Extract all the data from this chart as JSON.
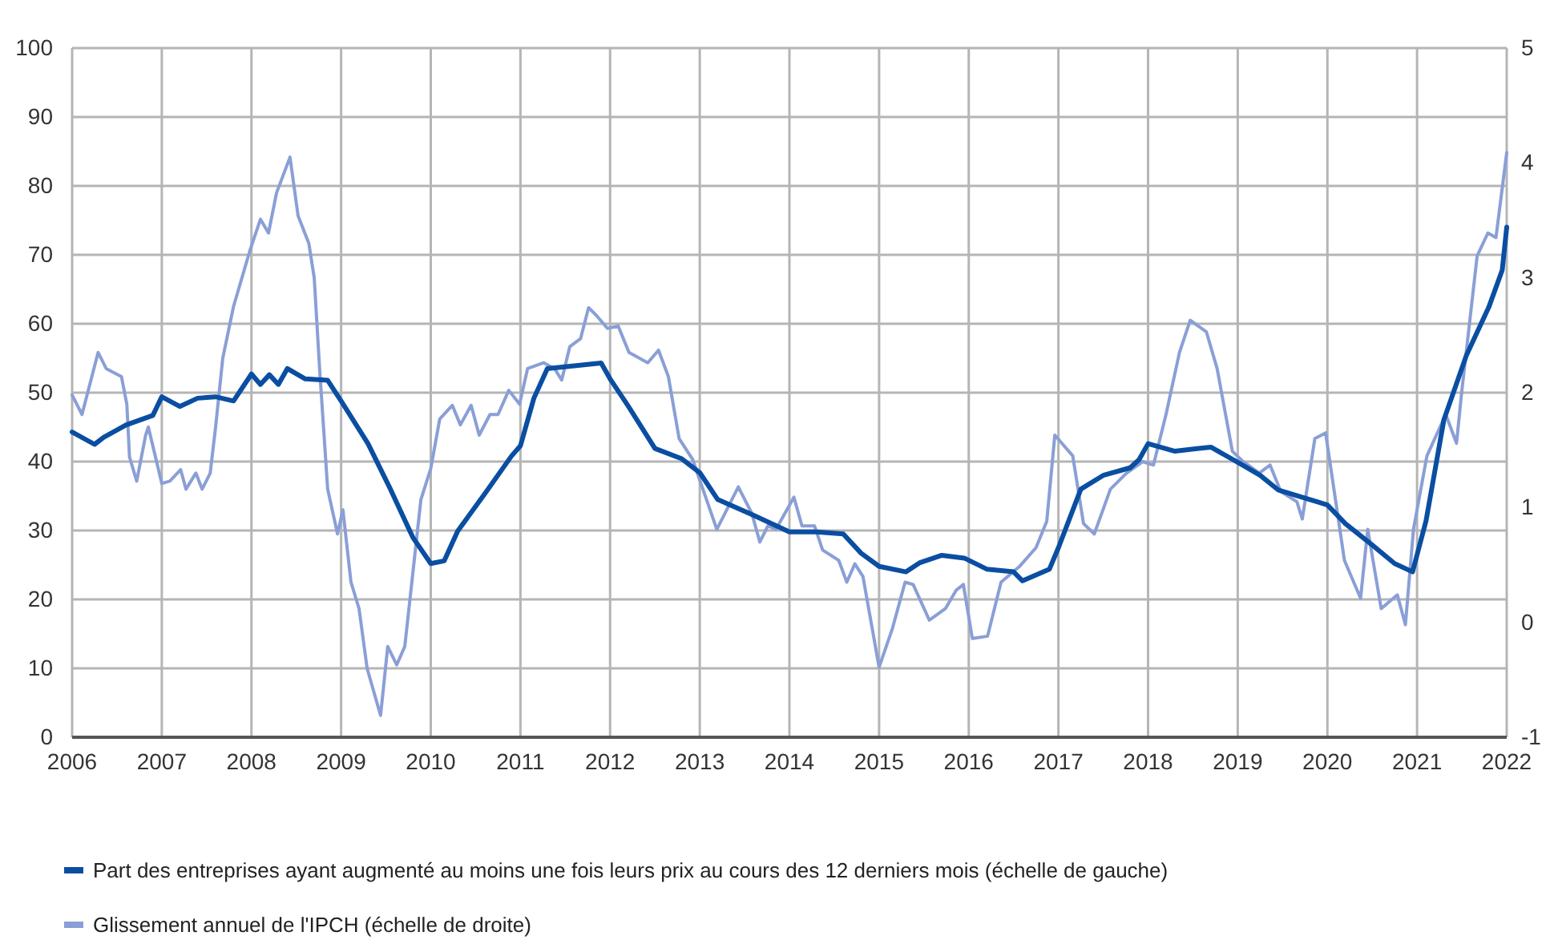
{
  "chart_data": {
    "type": "line",
    "xlim": [
      2006,
      2022
    ],
    "xticks": [
      2006,
      2007,
      2008,
      2009,
      2010,
      2011,
      2012,
      2013,
      2014,
      2015,
      2016,
      2017,
      2018,
      2019,
      2020,
      2021,
      2022
    ],
    "ylim": [
      0,
      100
    ],
    "yticks": [
      0,
      10,
      20,
      30,
      40,
      50,
      60,
      70,
      80,
      90,
      100
    ],
    "y2lim": [
      -1,
      5
    ],
    "y2ticks": [
      -1,
      0,
      1,
      2,
      3,
      4,
      5
    ],
    "grid": true,
    "legend": "bottom",
    "marker": "none",
    "line_style": "solid",
    "series": [
      {
        "name": "Part des entreprises ayant augmenté au moins une fois leurs prix au cours des 12 derniers mois (échelle de gauche)",
        "color": "#0a4ea2",
        "x": [
          2006.0,
          2006.25,
          2006.35,
          2006.6,
          2006.9,
          2007.0,
          2007.2,
          2007.4,
          2007.6,
          2007.8,
          2008.0,
          2008.1,
          2008.2,
          2008.3,
          2008.4,
          2008.6,
          2008.85,
          2009.0,
          2009.3,
          2009.55,
          2009.8,
          2010.0,
          2010.15,
          2010.3,
          2010.6,
          2010.9,
          2011.0,
          2011.15,
          2011.3,
          2011.6,
          2011.9,
          2012.0,
          2012.2,
          2012.5,
          2012.8,
          2013.0,
          2013.2,
          2013.6,
          2014.0,
          2014.3,
          2014.6,
          2014.8,
          2015.0,
          2015.3,
          2015.45,
          2015.7,
          2015.95,
          2016.2,
          2016.5,
          2016.6,
          2016.9,
          2017.0,
          2017.25,
          2017.5,
          2017.8,
          2017.9,
          2018.0,
          2018.3,
          2018.55,
          2018.7,
          2019.0,
          2019.25,
          2019.45,
          2019.7,
          2019.9,
          2020.0,
          2020.2,
          2020.5,
          2020.75,
          2020.95,
          2021.1,
          2021.3,
          2021.55,
          2021.8,
          2021.95,
          2022.0
        ],
        "values": [
          44.3,
          42.5,
          43.5,
          45.3,
          46.7,
          49.4,
          48,
          49.2,
          49.4,
          48.8,
          52.7,
          51.2,
          52.6,
          51.2,
          53.5,
          52,
          51.8,
          48.8,
          42.6,
          36,
          29,
          25.2,
          25.6,
          29.9,
          35.3,
          40.8,
          42.3,
          49.2,
          53.5,
          53.9,
          54.3,
          52,
          48.1,
          41.9,
          40.4,
          38.4,
          34.5,
          32.2,
          29.8,
          29.8,
          29.5,
          26.7,
          24.8,
          24,
          25.3,
          26.4,
          26,
          24.4,
          24,
          22.7,
          24.4,
          27.5,
          36,
          38,
          39.1,
          40.3,
          42.6,
          41.5,
          41.9,
          42.1,
          39.9,
          38,
          35.9,
          34.9,
          34.1,
          33.7,
          31,
          27.9,
          25.2,
          24,
          31.4,
          46.1,
          55.4,
          62.4,
          67.8,
          74
        ]
      },
      {
        "name": "Glissement annuel de l'IPCH (échelle de droite)",
        "color": "#8a9fd6",
        "axis": "y2",
        "x": [
          2006.0,
          2006.11,
          2006.29,
          2006.38,
          2006.55,
          2006.61,
          2006.64,
          2006.72,
          2006.82,
          2006.85,
          2007.0,
          2007.09,
          2007.21,
          2007.27,
          2007.38,
          2007.45,
          2007.54,
          2007.6,
          2007.68,
          2007.8,
          2007.98,
          2008.1,
          2008.19,
          2008.28,
          2008.43,
          2008.52,
          2008.64,
          2008.7,
          2008.76,
          2008.85,
          2008.96,
          2009.02,
          2009.11,
          2009.2,
          2009.29,
          2009.44,
          2009.52,
          2009.62,
          2009.71,
          2009.89,
          2010.0,
          2010.1,
          2010.24,
          2010.33,
          2010.45,
          2010.54,
          2010.66,
          2010.75,
          2010.87,
          2010.99,
          2011.08,
          2011.26,
          2011.38,
          2011.46,
          2011.55,
          2011.67,
          2011.76,
          2011.85,
          2011.97,
          2012.09,
          2012.21,
          2012.42,
          2012.54,
          2012.65,
          2012.77,
          2012.92,
          2013.19,
          2013.43,
          2013.58,
          2013.67,
          2013.76,
          2013.85,
          2014.05,
          2014.14,
          2014.28,
          2014.37,
          2014.55,
          2014.64,
          2014.73,
          2014.82,
          2015.0,
          2015.15,
          2015.29,
          2015.38,
          2015.56,
          2015.74,
          2015.86,
          2015.94,
          2016.04,
          2016.21,
          2016.36,
          2016.57,
          2016.75,
          2016.87,
          2016.96,
          2017.16,
          2017.28,
          2017.4,
          2017.58,
          2017.76,
          2017.94,
          2018.06,
          2018.2,
          2018.35,
          2018.47,
          2018.65,
          2018.77,
          2018.94,
          2019.06,
          2019.24,
          2019.36,
          2019.48,
          2019.66,
          2019.72,
          2019.86,
          2019.98,
          2020.19,
          2020.37,
          2020.45,
          2020.6,
          2020.78,
          2020.87,
          2020.96,
          2021.11,
          2021.32,
          2021.44,
          2021.5,
          2021.67,
          2021.79,
          2021.88,
          2022.0
        ],
        "values": [
          1.98,
          1.81,
          2.35,
          2.21,
          2.14,
          1.9,
          1.44,
          1.23,
          1.63,
          1.7,
          1.21,
          1.23,
          1.33,
          1.16,
          1.3,
          1.16,
          1.3,
          1.7,
          2.3,
          2.75,
          3.23,
          3.51,
          3.39,
          3.74,
          4.05,
          3.54,
          3.3,
          3.0,
          2.21,
          1.16,
          0.77,
          0.98,
          0.35,
          0.12,
          -0.4,
          -0.81,
          -0.21,
          -0.37,
          -0.21,
          1.07,
          1.34,
          1.77,
          1.89,
          1.72,
          1.89,
          1.63,
          1.81,
          1.81,
          2.02,
          1.9,
          2.21,
          2.26,
          2.21,
          2.11,
          2.4,
          2.47,
          2.74,
          2.67,
          2.56,
          2.58,
          2.35,
          2.26,
          2.37,
          2.14,
          1.6,
          1.42,
          0.81,
          1.18,
          0.95,
          0.7,
          0.84,
          0.81,
          1.09,
          0.84,
          0.84,
          0.63,
          0.54,
          0.35,
          0.51,
          0.4,
          -0.39,
          -0.05,
          0.35,
          0.33,
          0.02,
          0.12,
          0.28,
          0.33,
          -0.14,
          -0.12,
          0.35,
          0.49,
          0.65,
          0.88,
          1.63,
          1.45,
          0.86,
          0.77,
          1.16,
          1.3,
          1.4,
          1.37,
          1.81,
          2.35,
          2.63,
          2.53,
          2.21,
          1.49,
          1.4,
          1.3,
          1.37,
          1.14,
          1.05,
          0.9,
          1.6,
          1.65,
          0.54,
          0.21,
          0.81,
          0.12,
          0.24,
          -0.02,
          0.81,
          1.45,
          1.81,
          1.56,
          2.02,
          3.19,
          3.39,
          3.35,
          4.09
        ]
      }
    ]
  }
}
